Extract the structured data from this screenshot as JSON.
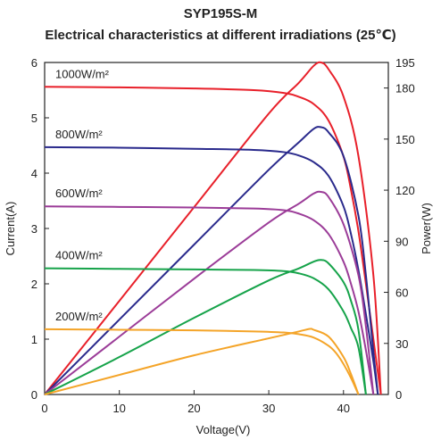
{
  "title": "SYP195S-M",
  "subtitle": "Electrical characteristics at different irradiations (25℃)",
  "chart_data": {
    "type": "line",
    "title": "SYP195S-M",
    "subtitle": "Electrical characteristics at different irradiations (25℃)",
    "xlabel": "Voltage(V)",
    "ylabel_left": "Current(A)",
    "ylabel_right": "Power(W)",
    "xlim": [
      0,
      46
    ],
    "ylim_left": [
      0,
      6
    ],
    "ylim_right": [
      0,
      195
    ],
    "x_ticks": [
      "0",
      "10",
      "20",
      "30",
      "40"
    ],
    "y_ticks_left": [
      "0",
      "1",
      "2",
      "3",
      "4",
      "5",
      "6"
    ],
    "y_ticks_right": [
      "0",
      "30",
      "60",
      "90",
      "120",
      "150",
      "180",
      "195"
    ],
    "grid": false,
    "series": [
      {
        "name": "1000W/m²",
        "color": "#e8202a",
        "iv": [
          [
            0,
            5.56
          ],
          [
            10,
            5.55
          ],
          [
            20,
            5.53
          ],
          [
            28,
            5.5
          ],
          [
            32,
            5.45
          ],
          [
            34,
            5.38
          ],
          [
            36,
            5.25
          ],
          [
            38,
            4.95
          ],
          [
            40,
            4.3
          ],
          [
            41,
            3.7
          ],
          [
            42,
            2.95
          ],
          [
            43,
            2.0
          ],
          [
            44,
            1.0
          ],
          [
            45,
            0
          ]
        ],
        "pv": [
          [
            0,
            0
          ],
          [
            10,
            55
          ],
          [
            20,
            110
          ],
          [
            30,
            165
          ],
          [
            34,
            183
          ],
          [
            36,
            193
          ],
          [
            37,
            195
          ],
          [
            38,
            191
          ],
          [
            40,
            175
          ],
          [
            42,
            140
          ],
          [
            44,
            70
          ],
          [
            45,
            0
          ]
        ]
      },
      {
        "name": "800W/m²",
        "color": "#2a2a8c",
        "iv": [
          [
            0,
            4.47
          ],
          [
            10,
            4.46
          ],
          [
            20,
            4.44
          ],
          [
            28,
            4.42
          ],
          [
            32,
            4.38
          ],
          [
            34,
            4.32
          ],
          [
            36,
            4.2
          ],
          [
            38,
            3.95
          ],
          [
            40,
            3.4
          ],
          [
            41,
            2.9
          ],
          [
            42,
            2.25
          ],
          [
            43,
            1.45
          ],
          [
            44,
            0.6
          ],
          [
            44.6,
            0
          ]
        ],
        "pv": [
          [
            0,
            0
          ],
          [
            10,
            44
          ],
          [
            20,
            88
          ],
          [
            30,
            132
          ],
          [
            34,
            148
          ],
          [
            36,
            156
          ],
          [
            37,
            157
          ],
          [
            38,
            154
          ],
          [
            40,
            140
          ],
          [
            42,
            105
          ],
          [
            43,
            70
          ],
          [
            44,
            25
          ],
          [
            44.6,
            0
          ]
        ]
      },
      {
        "name": "600W/m²",
        "color": "#9b3c98",
        "iv": [
          [
            0,
            3.4
          ],
          [
            10,
            3.39
          ],
          [
            20,
            3.38
          ],
          [
            28,
            3.36
          ],
          [
            32,
            3.33
          ],
          [
            34,
            3.27
          ],
          [
            36,
            3.15
          ],
          [
            38,
            2.9
          ],
          [
            40,
            2.4
          ],
          [
            41,
            2.0
          ],
          [
            42,
            1.5
          ],
          [
            43,
            0.8
          ],
          [
            44,
            0
          ]
        ],
        "pv": [
          [
            0,
            0
          ],
          [
            10,
            34
          ],
          [
            20,
            68
          ],
          [
            30,
            101
          ],
          [
            34,
            112
          ],
          [
            36,
            118
          ],
          [
            37,
            119
          ],
          [
            38,
            116
          ],
          [
            40,
            100
          ],
          [
            42,
            70
          ],
          [
            43,
            40
          ],
          [
            44,
            0
          ]
        ]
      },
      {
        "name": "400W/m²",
        "color": "#16a34a",
        "iv": [
          [
            0,
            2.28
          ],
          [
            10,
            2.27
          ],
          [
            20,
            2.26
          ],
          [
            28,
            2.25
          ],
          [
            32,
            2.23
          ],
          [
            34,
            2.19
          ],
          [
            36,
            2.1
          ],
          [
            38,
            1.9
          ],
          [
            40,
            1.5
          ],
          [
            41,
            1.2
          ],
          [
            42,
            0.85
          ],
          [
            43,
            0
          ]
        ],
        "pv": [
          [
            0,
            0
          ],
          [
            10,
            22
          ],
          [
            20,
            45
          ],
          [
            30,
            67
          ],
          [
            34,
            74
          ],
          [
            36,
            78
          ],
          [
            37,
            79
          ],
          [
            38,
            77
          ],
          [
            40,
            66
          ],
          [
            41,
            55
          ],
          [
            42,
            38
          ],
          [
            43,
            0
          ]
        ]
      },
      {
        "name": "200W/m²",
        "color": "#f4a428",
        "iv": [
          [
            0,
            1.18
          ],
          [
            10,
            1.17
          ],
          [
            20,
            1.16
          ],
          [
            28,
            1.14
          ],
          [
            32,
            1.12
          ],
          [
            34,
            1.09
          ],
          [
            36,
            1.03
          ],
          [
            38,
            0.88
          ],
          [
            39,
            0.75
          ],
          [
            40,
            0.55
          ],
          [
            41,
            0.3
          ],
          [
            42,
            0
          ]
        ],
        "pv": [
          [
            0,
            0
          ],
          [
            10,
            11.5
          ],
          [
            20,
            23
          ],
          [
            30,
            33
          ],
          [
            34,
            37
          ],
          [
            35.5,
            38.5
          ],
          [
            36,
            38
          ],
          [
            38,
            34
          ],
          [
            40,
            22
          ],
          [
            41,
            12
          ],
          [
            42,
            0
          ]
        ]
      }
    ]
  }
}
